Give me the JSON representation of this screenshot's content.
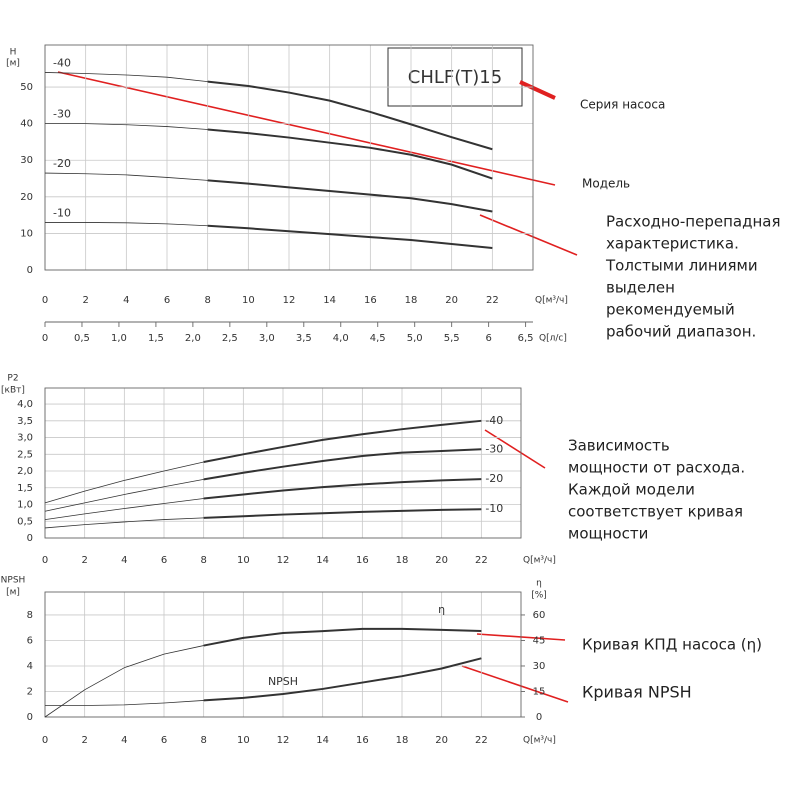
{
  "chart_data": [
    {
      "type": "line",
      "title": "CHLF(T)15",
      "ylabel": [
        "H",
        "[м]"
      ],
      "xlabel": "Q[м³/ч]",
      "x2label": "Q[л/с]",
      "x": [
        0,
        2,
        4,
        6,
        8,
        10,
        12,
        14,
        16,
        18,
        20,
        22
      ],
      "xlim": [
        0,
        24
      ],
      "xticks": [
        0,
        2,
        4,
        6,
        8,
        10,
        12,
        14,
        16,
        18,
        20,
        22
      ],
      "x2lim": [
        0,
        6.6
      ],
      "x2ticks": [
        0,
        {
          "value": 0.5,
          "label": "0,5"
        },
        {
          "value": 1,
          "label": "1,0"
        },
        {
          "value": 1.5,
          "label": "1,5"
        },
        {
          "value": 2,
          "label": "2,0"
        },
        {
          "value": 2.5,
          "label": "2,5"
        },
        {
          "value": 3,
          "label": "3,0"
        },
        {
          "value": 3.5,
          "label": "3,5"
        },
        {
          "value": 4,
          "label": "4,0"
        },
        {
          "value": 4.5,
          "label": "4,5"
        },
        {
          "value": 5,
          "label": "5,0"
        },
        {
          "value": 5.5,
          "label": "5,5"
        },
        6,
        {
          "value": 6.5,
          "label": "6,5"
        }
      ],
      "ylim": [
        0,
        61.5
      ],
      "yticks": [
        0,
        10,
        20,
        30,
        40,
        50
      ],
      "grid": true,
      "recommended_range": [
        8,
        22
      ],
      "series_label_side": "start",
      "series": [
        {
          "name": "-40",
          "color": "#333333",
          "values": [
            54,
            53.7,
            53.3,
            52.7,
            51.5,
            50.3,
            48.5,
            46.3,
            43.2,
            39.8,
            36.3,
            33
          ]
        },
        {
          "name": "-30",
          "color": "#333333",
          "values": [
            40,
            40,
            39.7,
            39.2,
            38.4,
            37.4,
            36.2,
            34.8,
            33.4,
            31.5,
            28.8,
            25
          ]
        },
        {
          "name": "-20",
          "color": "#333333",
          "values": [
            26.5,
            26.3,
            26,
            25.3,
            24.5,
            23.6,
            22.6,
            21.6,
            20.6,
            19.6,
            18,
            16
          ]
        },
        {
          "name": "-10",
          "color": "#333333",
          "values": [
            13,
            13,
            12.9,
            12.6,
            12.1,
            11.4,
            10.6,
            9.8,
            9,
            8.2,
            7.1,
            6
          ]
        }
      ]
    },
    {
      "type": "line",
      "ylabel": [
        "P2",
        "[кВт]"
      ],
      "xlabel": "Q[м³/ч]",
      "x": [
        0,
        2,
        4,
        6,
        8,
        10,
        12,
        14,
        16,
        18,
        20,
        22
      ],
      "xlim": [
        0,
        24
      ],
      "xticks": [
        0,
        2,
        4,
        6,
        8,
        10,
        12,
        14,
        16,
        18,
        20,
        22
      ],
      "ylim": [
        0,
        4.48
      ],
      "yticks": [
        0,
        {
          "value": 0.5,
          "label": "0,5"
        },
        {
          "value": 1,
          "label": "1,0"
        },
        {
          "value": 1.5,
          "label": "1,5"
        },
        {
          "value": 2,
          "label": "2,0"
        },
        {
          "value": 2.5,
          "label": "2,5"
        },
        {
          "value": 3,
          "label": "3,0"
        },
        {
          "value": 3.5,
          "label": "3,5"
        },
        {
          "value": 4,
          "label": "4,0"
        }
      ],
      "grid": true,
      "recommended_range": [
        8,
        22
      ],
      "series_label_side": "end",
      "series": [
        {
          "name": "-40",
          "color": "#333333",
          "values": [
            1.05,
            1.4,
            1.72,
            2.0,
            2.27,
            2.5,
            2.72,
            2.93,
            3.1,
            3.25,
            3.38,
            3.5
          ]
        },
        {
          "name": "-30",
          "color": "#333333",
          "values": [
            0.8,
            1.05,
            1.3,
            1.53,
            1.75,
            1.95,
            2.13,
            2.3,
            2.45,
            2.55,
            2.6,
            2.65
          ]
        },
        {
          "name": "-20",
          "color": "#333333",
          "values": [
            0.55,
            0.72,
            0.88,
            1.03,
            1.18,
            1.3,
            1.42,
            1.52,
            1.6,
            1.67,
            1.72,
            1.76
          ]
        },
        {
          "name": "-10",
          "color": "#333333",
          "values": [
            0.3,
            0.4,
            0.48,
            0.55,
            0.6,
            0.65,
            0.7,
            0.74,
            0.78,
            0.81,
            0.84,
            0.86
          ]
        }
      ]
    },
    {
      "type": "line",
      "ylabel": [
        "NPSH",
        "[м]"
      ],
      "y2label": [
        "η",
        "[%]"
      ],
      "xlabel": "Q[м³/ч]",
      "x": [
        0,
        2,
        4,
        6,
        8,
        10,
        12,
        14,
        16,
        18,
        20,
        22
      ],
      "xlim": [
        0,
        24
      ],
      "xticks": [
        0,
        2,
        4,
        6,
        8,
        10,
        12,
        14,
        16,
        18,
        20,
        22
      ],
      "ylim": [
        0,
        9.8
      ],
      "yticks": [
        0,
        2,
        4,
        6,
        8
      ],
      "y2lim": [
        0,
        73.5
      ],
      "y2ticks": [
        0,
        15,
        30,
        45,
        60
      ],
      "grid": true,
      "recommended_range": [
        8,
        22
      ],
      "series_label_side": "custom",
      "series": [
        {
          "name": "η",
          "color": "#333333",
          "axis": "y2",
          "values": [
            0,
            16,
            29,
            37,
            42,
            46.5,
            49.4,
            50.5,
            51.8,
            51.8,
            51.2,
            50.6
          ]
        },
        {
          "name": "NPSH",
          "color": "#333333",
          "values": [
            0.9,
            0.9,
            0.95,
            1.1,
            1.3,
            1.5,
            1.8,
            2.2,
            2.7,
            3.2,
            3.8,
            4.6
          ]
        }
      ]
    }
  ],
  "annotations": [
    {
      "lines": [
        "Серия насоса"
      ]
    },
    {
      "lines": [
        "Модель"
      ]
    },
    {
      "lines": [
        "Расходно-перепадная",
        "характеристика.",
        "Толстыми линиями",
        "выделен",
        "рекомендуемый",
        "рабочий диапазон."
      ]
    },
    {
      "lines": [
        "Зависимость",
        "мощности от расхода.",
        "Каждой модели",
        "соответствует кривая",
        "мощности"
      ]
    },
    {
      "lines": [
        "Кривая КПД насоса (η)"
      ]
    },
    {
      "lines": [
        "Кривая NPSH"
      ]
    }
  ]
}
